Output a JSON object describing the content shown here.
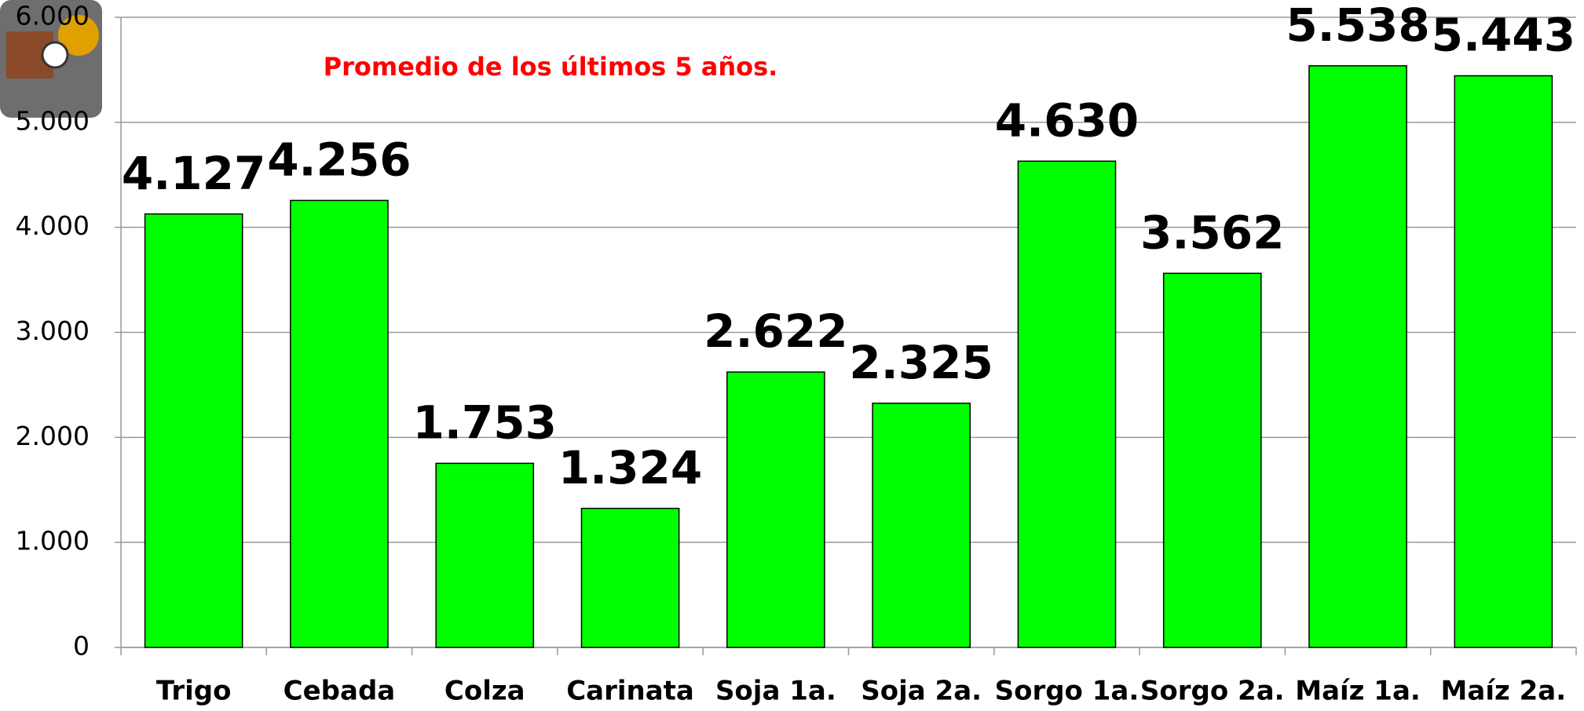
{
  "chart_data": {
    "type": "bar",
    "annotation": "Promedio de los últimos 5 años.",
    "categories": [
      "Trigo",
      "Cebada",
      "Colza",
      "Carinata",
      "Soja 1a.",
      "Soja 2a.",
      "Sorgo 1a.",
      "Sorgo 2a.",
      "Maíz 1a.",
      "Maíz 2a."
    ],
    "values": [
      4127,
      4256,
      1753,
      1324,
      2622,
      2325,
      4630,
      3562,
      5538,
      5443
    ],
    "value_labels": [
      "4.127",
      "4.256",
      "1.753",
      "1.324",
      "2.622",
      "2.325",
      "4.630",
      "3.562",
      "5.538",
      "5.443"
    ],
    "color": "#00ff00",
    "ylim": [
      0,
      6000
    ],
    "yticks": [
      0,
      {
        "value": 1000,
        "label": "1.000"
      },
      {
        "value": 2000,
        "label": "2.000"
      },
      {
        "value": 3000,
        "label": "3.000"
      },
      {
        "value": 4000,
        "label": "4.000"
      },
      {
        "value": 5000,
        "label": "5.000"
      },
      {
        "value": 6000,
        "label": "6.000"
      }
    ],
    "grid": true
  }
}
